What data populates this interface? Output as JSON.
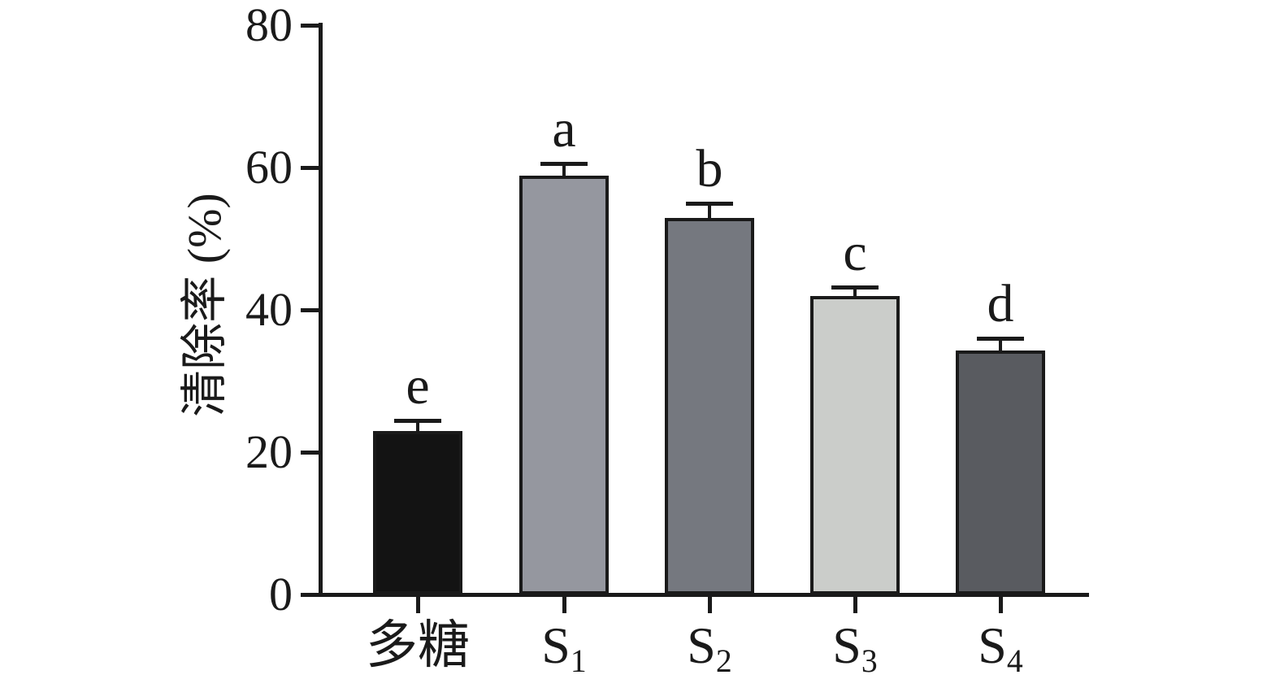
{
  "chart_data": {
    "type": "bar",
    "title": "",
    "xlabel": "",
    "ylabel": "清除率 (%)",
    "ylim": [
      0,
      80
    ],
    "yticks": [
      0,
      20,
      40,
      60,
      80
    ],
    "grid": false,
    "legend": false,
    "axis_color": "#1a1a1a",
    "background_color": "#ffffff",
    "categories": [
      {
        "base": "多糖",
        "sub": ""
      },
      {
        "base": "S",
        "sub": "1"
      },
      {
        "base": "S",
        "sub": "2"
      },
      {
        "base": "S",
        "sub": "3"
      },
      {
        "base": "S",
        "sub": "4"
      }
    ],
    "series": [
      {
        "name": "清除率",
        "values": [
          23.0,
          58.9,
          52.9,
          41.9,
          34.3
        ],
        "errors": [
          1.2,
          1.5,
          1.9,
          1.1,
          1.5
        ],
        "sig_letters": [
          "e",
          "a",
          "b",
          "c",
          "d"
        ],
        "bar_colors": [
          "#131313",
          "#95979f",
          "#75787f",
          "#cbcdca",
          "#595b60"
        ]
      }
    ]
  }
}
